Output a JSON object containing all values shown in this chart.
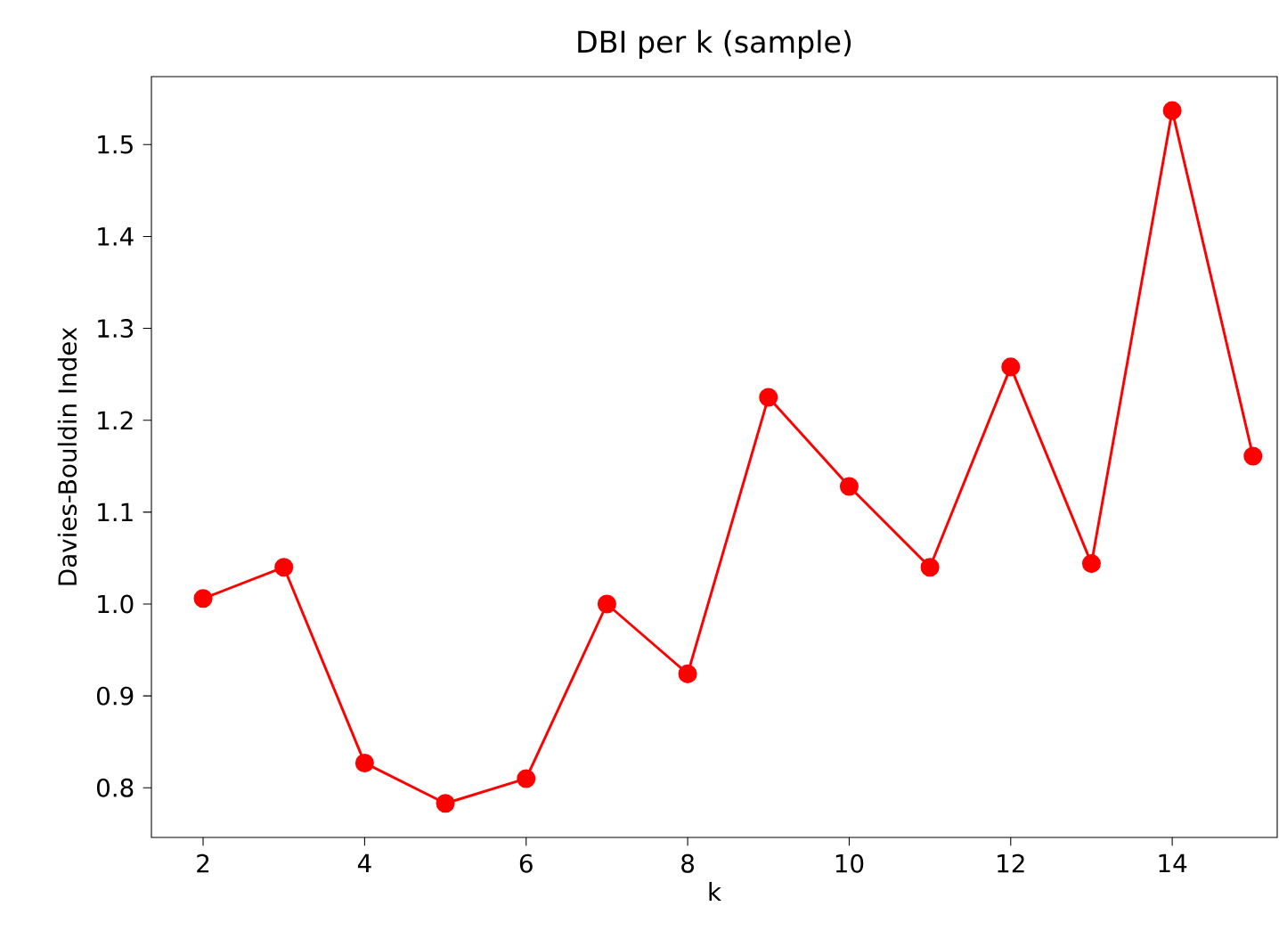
{
  "chart_data": {
    "type": "line",
    "title": "DBI per k (sample)",
    "xlabel": "k",
    "ylabel": "Davies-Bouldin Index",
    "x": [
      2,
      3,
      4,
      5,
      6,
      7,
      8,
      9,
      10,
      11,
      12,
      13,
      14,
      15
    ],
    "series": [
      {
        "color": "#ff0000",
        "values": [
          1.006,
          1.04,
          0.827,
          0.783,
          0.81,
          1.0,
          0.924,
          1.225,
          1.128,
          1.04,
          1.258,
          1.044,
          1.537,
          1.161
        ]
      }
    ],
    "xlim": [
      1.36,
      15.3
    ],
    "ylim": [
      0.746,
      1.574
    ],
    "xticks": [
      2,
      4,
      6,
      8,
      10,
      12,
      14
    ],
    "yticks": [
      0.8,
      0.9,
      {
        "value": 1.0,
        "label": "1.0"
      },
      1.1,
      1.2,
      1.3,
      1.4,
      1.5
    ],
    "marker": "circle",
    "line_style": "solid",
    "grid": false
  }
}
